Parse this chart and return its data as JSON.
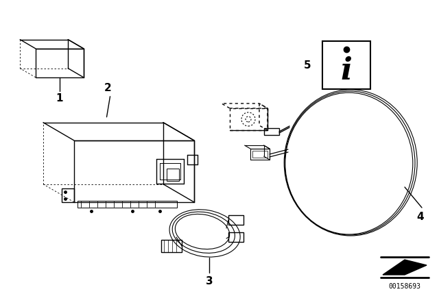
{
  "bg_color": "#ffffff",
  "line_color": "#000000",
  "fig_width": 6.4,
  "fig_height": 4.48,
  "dpi": 100,
  "diagram_id": "00158693"
}
